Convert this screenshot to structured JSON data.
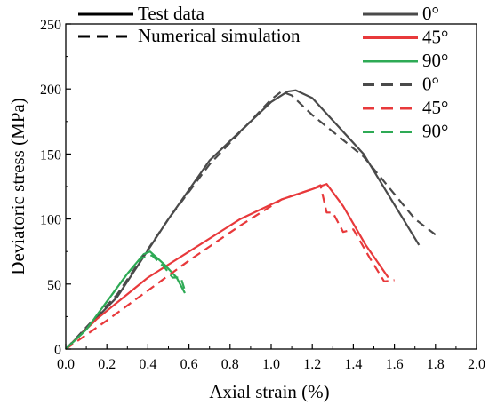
{
  "chart_data": {
    "type": "line",
    "xlabel": "Axial strain (%)",
    "ylabel": "Deviatoric stress (MPa)",
    "xlim": [
      0.0,
      2.0
    ],
    "ylim": [
      0,
      250
    ],
    "xticks": [
      0.0,
      0.2,
      0.4,
      0.6,
      0.8,
      1.0,
      1.2,
      1.4,
      1.6,
      1.8,
      2.0
    ],
    "xtick_labels": [
      "0.0",
      "0.2",
      "0.4",
      "0.6",
      "0.8",
      "1.0",
      "1.2",
      "1.4",
      "1.6",
      "1.8",
      "2.0"
    ],
    "yticks": [
      0,
      50,
      100,
      150,
      200,
      250
    ],
    "ytick_labels": [
      "0",
      "50",
      "100",
      "150",
      "200",
      "250"
    ],
    "grid": false,
    "legend_style": {
      "solid_label": "Test data",
      "dashed_label": "Numerical simulation"
    },
    "series": [
      {
        "name": "0°",
        "style": "solid",
        "color": "#4a4a4a",
        "x": [
          0.0,
          0.25,
          0.5,
          0.7,
          0.9,
          1.0,
          1.08,
          1.12,
          1.2,
          1.45,
          1.72
        ],
        "y": [
          0,
          40,
          100,
          145,
          175,
          190,
          198,
          199,
          193,
          150,
          80
        ]
      },
      {
        "name": "45°",
        "style": "solid",
        "color": "#e8393b",
        "x": [
          0.0,
          0.15,
          0.4,
          0.65,
          0.85,
          1.05,
          1.2,
          1.27,
          1.35,
          1.46,
          1.57
        ],
        "y": [
          0,
          23,
          55,
          80,
          100,
          115,
          123,
          127,
          110,
          80,
          55
        ]
      },
      {
        "name": "90°",
        "style": "solid",
        "color": "#2eaa55",
        "x": [
          0.0,
          0.1,
          0.3,
          0.38,
          0.41,
          0.48,
          0.54,
          0.58
        ],
        "y": [
          0,
          15,
          58,
          73,
          75,
          65,
          55,
          43
        ]
      },
      {
        "name": "0°",
        "style": "dashed",
        "color": "#4a4a4a",
        "x": [
          0.0,
          0.25,
          0.5,
          0.7,
          0.88,
          1.0,
          1.05,
          1.1,
          1.2,
          1.45,
          1.7,
          1.8
        ],
        "y": [
          0,
          42,
          100,
          142,
          172,
          192,
          198,
          195,
          180,
          148,
          100,
          88
        ]
      },
      {
        "name": "45°",
        "style": "dashed",
        "color": "#e8393b",
        "x": [
          0.0,
          0.2,
          0.4,
          0.6,
          0.85,
          1.05,
          1.2,
          1.24,
          1.27,
          1.3,
          1.35,
          1.4,
          1.48,
          1.55,
          1.6
        ],
        "y": [
          0,
          22,
          45,
          68,
          95,
          115,
          123,
          126,
          105,
          105,
          90,
          92,
          70,
          52,
          53
        ]
      },
      {
        "name": "90°",
        "style": "dashed",
        "color": "#2eaa55",
        "x": [
          0.0,
          0.1,
          0.3,
          0.37,
          0.42,
          0.48,
          0.52,
          0.56,
          0.58
        ],
        "y": [
          0,
          15,
          58,
          70,
          72,
          63,
          55,
          55,
          45
        ]
      }
    ]
  }
}
